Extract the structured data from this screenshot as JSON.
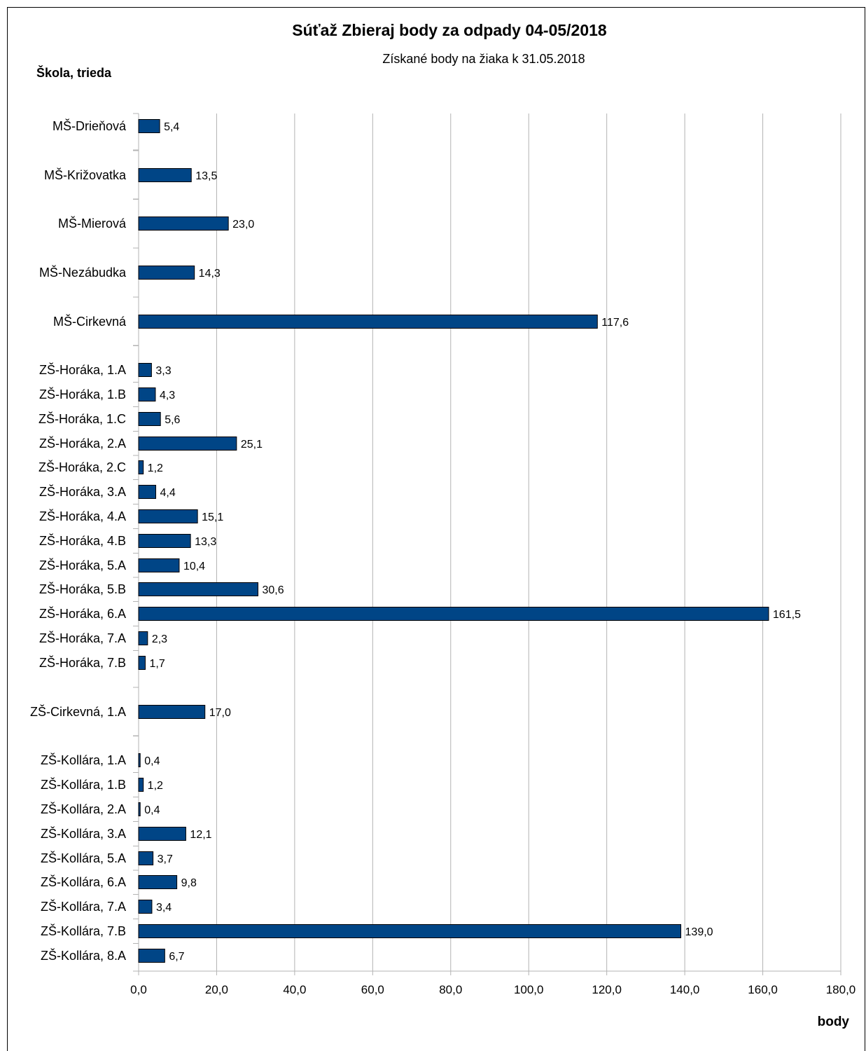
{
  "chart_data": {
    "type": "bar",
    "orientation": "horizontal",
    "title": "Súťaž Zbieraj body za odpady 04-05/2018",
    "subtitle": "Získané body na žiaka k  31.05.2018",
    "ylabel": "Škola, trieda",
    "xlabel": "body",
    "xlim": [
      0,
      180
    ],
    "xticks": [
      "0,0",
      "20,0",
      "40,0",
      "60,0",
      "80,0",
      "100,0",
      "120,0",
      "140,0",
      "160,0",
      "180,0"
    ],
    "grid": true,
    "bar_color": "#004586",
    "categories": [
      "MŠ-Drieňová",
      "MŠ-Križovatka",
      "MŠ-Mierová",
      "MŠ-Nezábudka",
      "MŠ-Cirkevná",
      "ZŠ-Horáka, 1.A",
      "ZŠ-Horáka, 1.B",
      "ZŠ-Horáka, 1.C",
      "ZŠ-Horáka, 2.A",
      "ZŠ-Horáka, 2.C",
      "ZŠ-Horáka, 3.A",
      "ZŠ-Horáka, 4.A",
      "ZŠ-Horáka, 4.B",
      "ZŠ-Horáka, 5.A",
      "ZŠ-Horáka, 5.B",
      "ZŠ-Horáka, 6.A",
      "ZŠ-Horáka, 7.A",
      "ZŠ-Horáka, 7.B",
      "ZŠ-Cirkevná, 1.A",
      "ZŠ-Kollára, 1.A",
      "ZŠ-Kollára, 1.B",
      "ZŠ-Kollára, 2.A",
      "ZŠ-Kollára, 3.A",
      "ZŠ-Kollára, 5.A",
      "ZŠ-Kollára, 6.A",
      "ZŠ-Kollára, 7.A",
      "ZŠ-Kollára, 7.B",
      "ZŠ-Kollára, 8.A"
    ],
    "values": [
      5.4,
      13.5,
      23.0,
      14.3,
      117.6,
      3.3,
      4.3,
      5.6,
      25.1,
      1.2,
      4.4,
      15.1,
      13.3,
      10.4,
      30.6,
      161.5,
      2.3,
      1.7,
      17.0,
      0.4,
      1.2,
      0.4,
      12.1,
      3.7,
      9.8,
      3.4,
      139.0,
      6.7
    ],
    "value_labels": [
      "5,4",
      "13,5",
      "23,0",
      "14,3",
      "117,6",
      "3,3",
      "4,3",
      "5,6",
      "25,1",
      "1,2",
      "4,4",
      "15,1",
      "13,3",
      "10,4",
      "30,6",
      "161,5",
      "2,3",
      "1,7",
      "17,0",
      "0,4",
      "1,2",
      "0,4",
      "12,1",
      "3,7",
      "9,8",
      "3,4",
      "139,0",
      "6,7"
    ]
  }
}
